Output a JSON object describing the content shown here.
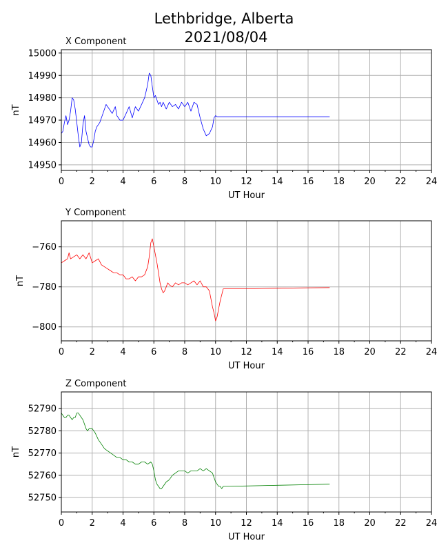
{
  "title_line1": "Lethbridge, Alberta",
  "title_line2": "2021/08/04",
  "chart_data": [
    {
      "type": "line",
      "title": "X Component",
      "xlabel": "UT Hour",
      "ylabel": "nT",
      "color": "#0000ff",
      "xlim": [
        0,
        24
      ],
      "ylim": [
        14947.5,
        15001.5
      ],
      "xticks": [
        0,
        2,
        4,
        6,
        8,
        10,
        12,
        14,
        16,
        18,
        20,
        22,
        24
      ],
      "yticks": [
        14950,
        14960,
        14970,
        14980,
        14990,
        15000
      ],
      "grid": true,
      "series": [
        {
          "x": [
            0,
            0.1,
            0.2,
            0.3,
            0.4,
            0.5,
            0.6,
            0.7,
            0.8,
            0.9,
            1.0,
            1.1,
            1.2,
            1.3,
            1.4,
            1.5,
            1.6,
            1.7,
            1.8,
            1.9,
            2.0,
            2.1,
            2.2,
            2.3,
            2.5,
            2.7,
            2.9,
            3.1,
            3.3,
            3.5,
            3.6,
            3.8,
            4.0,
            4.2,
            4.4,
            4.6,
            4.8,
            5.0,
            5.2,
            5.4,
            5.5,
            5.6,
            5.7,
            5.8,
            5.9,
            6.0,
            6.1,
            6.2,
            6.3,
            6.4,
            6.5,
            6.6,
            6.8,
            7.0,
            7.2,
            7.4,
            7.6,
            7.8,
            8.0,
            8.2,
            8.4,
            8.6,
            8.8,
            9.0,
            9.2,
            9.4,
            9.6,
            9.8,
            9.9,
            10.0,
            10.1,
            10.2,
            10.3,
            10.4,
            10.5,
            10.6,
            10.7,
            12.0,
            14.0,
            16.0,
            17.4
          ],
          "y": [
            14964,
            14965,
            14969,
            14972,
            14968,
            14970,
            14974,
            14980,
            14979,
            14975,
            14969,
            14963,
            14958,
            14960,
            14968,
            14972,
            14965,
            14962,
            14959,
            14958,
            14958,
            14961,
            14965,
            14967,
            14969,
            14973,
            14977,
            14975,
            14973,
            14976,
            14972,
            14970,
            14970,
            14973,
            14976,
            14971,
            14976,
            14974,
            14977,
            14980,
            14983,
            14986,
            14991,
            14990,
            14985,
            14980,
            14981,
            14979,
            14977,
            14978,
            14976,
            14978,
            14975,
            14978,
            14976,
            14977,
            14975,
            14978,
            14976,
            14978,
            14974,
            14978,
            14977,
            14971,
            14966,
            14963,
            14964,
            14967,
            14971,
            14972,
            14971.5,
            14971.5,
            14971.5,
            14971.5,
            14971.5,
            14971.5,
            14971.5,
            14971.5,
            14971.5,
            14971.5,
            14971.5
          ]
        }
      ]
    },
    {
      "type": "line",
      "title": "Y Component",
      "xlabel": "UT Hour",
      "ylabel": "nT",
      "color": "#ff0000",
      "xlim": [
        0,
        24
      ],
      "ylim": [
        -807,
        -747
      ],
      "xticks": [
        0,
        2,
        4,
        6,
        8,
        10,
        12,
        14,
        16,
        18,
        20,
        22,
        24
      ],
      "yticks": [
        -760,
        -780,
        -800
      ],
      "grid": true,
      "series": [
        {
          "x": [
            0,
            0.2,
            0.4,
            0.5,
            0.6,
            0.8,
            1.0,
            1.2,
            1.4,
            1.6,
            1.8,
            2.0,
            2.2,
            2.4,
            2.6,
            2.8,
            3.0,
            3.2,
            3.4,
            3.6,
            3.8,
            4.0,
            4.2,
            4.4,
            4.6,
            4.8,
            5.0,
            5.2,
            5.4,
            5.6,
            5.7,
            5.8,
            5.9,
            6.0,
            6.1,
            6.2,
            6.3,
            6.4,
            6.5,
            6.6,
            6.7,
            6.8,
            6.9,
            7.0,
            7.2,
            7.4,
            7.6,
            7.8,
            8.0,
            8.2,
            8.4,
            8.6,
            8.8,
            9.0,
            9.2,
            9.4,
            9.6,
            9.8,
            9.9,
            10.0,
            10.1,
            10.2,
            10.3,
            10.4,
            10.5,
            10.6,
            12.0,
            14.0,
            16.0,
            17.4
          ],
          "y": [
            -768,
            -767,
            -766,
            -763,
            -766,
            -765,
            -764,
            -766,
            -764,
            -766,
            -763,
            -768,
            -767,
            -766,
            -769,
            -770,
            -771,
            -772,
            -773,
            -773,
            -774,
            -774,
            -776,
            -776,
            -775,
            -777,
            -775,
            -775,
            -774,
            -770,
            -765,
            -758,
            -756,
            -760,
            -764,
            -768,
            -773,
            -778,
            -781,
            -783,
            -782,
            -780,
            -778,
            -779,
            -780,
            -778,
            -779,
            -778,
            -778,
            -779,
            -778,
            -777,
            -779,
            -777,
            -780,
            -780,
            -782,
            -790,
            -793,
            -797,
            -795,
            -791,
            -787,
            -784,
            -781,
            -781,
            -781,
            -780.7,
            -780.5,
            -780.4
          ]
        }
      ]
    },
    {
      "type": "line",
      "title": "Z Component",
      "xlabel": "UT Hour",
      "ylabel": "nT",
      "color": "#008000",
      "xlim": [
        0,
        24
      ],
      "ylim": [
        52743.5,
        52797.5
      ],
      "xticks": [
        0,
        2,
        4,
        6,
        8,
        10,
        12,
        14,
        16,
        18,
        20,
        22,
        24
      ],
      "yticks": [
        52750,
        52760,
        52770,
        52780,
        52790
      ],
      "grid": true,
      "series": [
        {
          "x": [
            0,
            0.1,
            0.2,
            0.3,
            0.4,
            0.5,
            0.6,
            0.7,
            0.8,
            0.9,
            1.0,
            1.1,
            1.2,
            1.3,
            1.4,
            1.5,
            1.6,
            1.7,
            1.8,
            1.9,
            2.0,
            2.2,
            2.4,
            2.6,
            2.8,
            3.0,
            3.2,
            3.4,
            3.6,
            3.8,
            4.0,
            4.2,
            4.4,
            4.6,
            4.8,
            5.0,
            5.2,
            5.4,
            5.6,
            5.8,
            5.9,
            6.0,
            6.1,
            6.2,
            6.3,
            6.4,
            6.5,
            6.6,
            6.8,
            7.0,
            7.2,
            7.4,
            7.6,
            7.8,
            8.0,
            8.2,
            8.4,
            8.6,
            8.8,
            9.0,
            9.2,
            9.4,
            9.6,
            9.8,
            9.9,
            10.0,
            10.1,
            10.2,
            10.3,
            10.4,
            10.5,
            10.6,
            10.7,
            12.0,
            14.0,
            16.0,
            17.4
          ],
          "y": [
            52788,
            52787,
            52786,
            52786,
            52787,
            52787,
            52786,
            52785,
            52786,
            52786,
            52788,
            52788,
            52787,
            52786,
            52785,
            52783,
            52781,
            52780,
            52781,
            52781,
            52781,
            52779,
            52776,
            52774,
            52772,
            52771,
            52770,
            52769,
            52768,
            52768,
            52767,
            52767,
            52766,
            52766,
            52765,
            52765,
            52766,
            52766,
            52765,
            52766,
            52765,
            52762,
            52758,
            52756,
            52755,
            52754,
            52754,
            52755,
            52757,
            52758,
            52760,
            52761,
            52762,
            52762,
            52762,
            52761,
            52762,
            52762,
            52762,
            52763,
            52762,
            52763,
            52762,
            52761,
            52759,
            52757,
            52756,
            52755,
            52755,
            52754,
            52755,
            52755,
            52755,
            52755.2,
            52755.5,
            52755.8,
            52756
          ]
        }
      ]
    }
  ]
}
